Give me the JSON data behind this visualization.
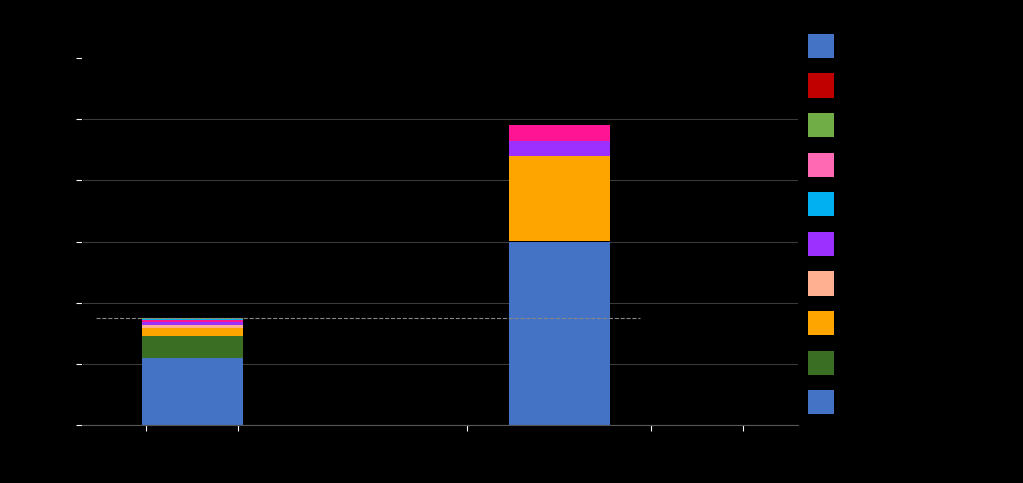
{
  "background_color": "#000000",
  "text_color": "#ffffff",
  "bar_width": 0.55,
  "bar_positions": [
    1,
    3
  ],
  "bar1_segments": [
    {
      "color": "#4472c4",
      "val": 2200
    },
    {
      "color": "#3a6e22",
      "val": 700
    },
    {
      "color": "#ffa500",
      "val": 280
    },
    {
      "color": "#ffb090",
      "val": 90
    },
    {
      "color": "#9b30ff",
      "val": 100
    },
    {
      "color": "#ff1493",
      "val": 60
    },
    {
      "color": "#00b0f0",
      "val": 40
    },
    {
      "color": "#70ad47",
      "val": 30
    }
  ],
  "bar2_segments": [
    {
      "color": "#4472c4",
      "val": 6000
    },
    {
      "color": "#ffa500",
      "val": 2800
    },
    {
      "color": "#9b30ff",
      "val": 500
    },
    {
      "color": "#ff1493",
      "val": 500
    }
  ],
  "ylim": [
    0,
    12000
  ],
  "yticks": [
    0,
    2000,
    4000,
    6000,
    8000,
    10000,
    12000
  ],
  "grid_color": "#555555",
  "dashed_line_color": "#888888",
  "legend_colors": [
    "#4472c4",
    "#c00000",
    "#70ad47",
    "#ff69b4",
    "#00b0f0",
    "#9b30ff",
    "#ffb090",
    "#ffa500",
    "#3a6e22",
    "#4472c4"
  ],
  "figsize": [
    10.23,
    4.83
  ],
  "dpi": 100
}
